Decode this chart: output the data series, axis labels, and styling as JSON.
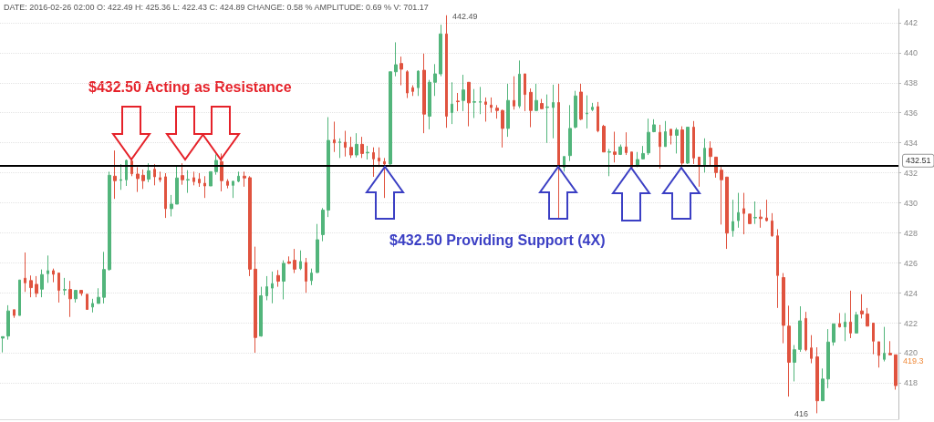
{
  "chart_data": {
    "type": "candlestick",
    "categories": [
      null,
      null,
      null,
      null,
      null,
      null,
      null,
      null,
      null,
      null,
      null,
      null,
      null,
      null,
      null,
      null,
      null,
      null,
      null,
      null,
      null,
      null,
      null,
      null,
      null,
      null,
      null,
      null,
      null,
      null,
      null,
      null,
      null,
      null,
      null,
      null,
      null,
      null,
      null,
      null,
      null,
      null,
      null,
      null,
      null,
      null,
      null,
      null,
      null,
      null,
      null,
      null,
      null,
      null,
      null,
      null,
      null,
      null,
      null,
      null,
      null,
      null,
      null,
      null,
      null,
      null,
      null,
      null,
      null,
      null,
      null,
      null,
      null,
      null,
      null,
      null,
      null,
      null,
      null,
      null,
      null,
      null,
      null,
      null,
      null,
      null,
      null,
      null,
      null,
      null,
      null,
      null,
      null,
      null,
      null,
      null,
      null,
      null,
      null,
      null,
      null,
      null,
      null,
      null,
      null,
      null,
      null,
      null,
      null,
      null,
      null,
      null,
      null,
      null,
      null,
      null,
      null,
      null,
      null,
      null,
      null,
      null,
      null,
      null,
      null,
      null,
      null,
      null,
      null,
      null,
      null,
      null,
      null,
      null,
      null,
      null,
      null,
      null,
      null,
      null,
      null,
      null,
      null,
      null,
      null,
      null,
      null,
      null,
      null,
      null,
      null,
      null,
      null,
      null,
      null,
      null,
      null,
      null,
      null,
      null
    ],
    "ohlc": [
      [
        421.0,
        421.1,
        420.05,
        421.1
      ],
      [
        421.14,
        423.19,
        420.9,
        422.81
      ],
      [
        422.89,
        422.89,
        422.35,
        422.51
      ],
      [
        422.51,
        424.87,
        422.51,
        424.87
      ],
      [
        424.99,
        426.7,
        424.08,
        424.68
      ],
      [
        424.83,
        425.17,
        423.72,
        424.36
      ],
      [
        424.58,
        425.13,
        423.72,
        423.98
      ],
      [
        424.26,
        425.57,
        423.72,
        425.23
      ],
      [
        425.29,
        426.5,
        424.68,
        425.49
      ],
      [
        425.49,
        425.63,
        424.72,
        425.25
      ],
      [
        425.33,
        425.33,
        423.37,
        424.18
      ],
      [
        424.2,
        425.01,
        423.86,
        424.24
      ],
      [
        424.24,
        424.81,
        422.41,
        423.62
      ],
      [
        423.62,
        424.18,
        423.37,
        424.18
      ],
      [
        424.18,
        424.18,
        423.82,
        423.98
      ],
      [
        423.92,
        423.92,
        422.91,
        422.91
      ],
      [
        423.07,
        423.62,
        422.71,
        423.31
      ],
      [
        423.31,
        424.32,
        423.31,
        423.72
      ],
      [
        423.72,
        426.74,
        423.31,
        425.57
      ],
      [
        425.57,
        432.08,
        425.49,
        431.84
      ],
      [
        431.78,
        433.49,
        430.27,
        431.48
      ],
      [
        431.5,
        432.58,
        430.87,
        431.55
      ],
      [
        431.54,
        432.89,
        431.13,
        432.83
      ],
      [
        432.79,
        432.89,
        431.78,
        431.94
      ],
      [
        431.92,
        432.38,
        430.73,
        431.62
      ],
      [
        431.84,
        432.22,
        430.93,
        431.48
      ],
      [
        431.58,
        432.64,
        431.38,
        432.14
      ],
      [
        432.24,
        432.58,
        431.17,
        431.74
      ],
      [
        431.68,
        432.08,
        431.38,
        431.54
      ],
      [
        431.74,
        431.98,
        429.0,
        429.62
      ],
      [
        429.62,
        430.53,
        429.1,
        429.92
      ],
      [
        429.92,
        432.48,
        429.92,
        431.66
      ],
      [
        431.82,
        432.64,
        431.21,
        431.54
      ],
      [
        431.52,
        432.18,
        430.67,
        431.56
      ],
      [
        431.68,
        432.08,
        431.17,
        431.42
      ],
      [
        431.58,
        431.98,
        431.07,
        431.33
      ],
      [
        431.31,
        431.78,
        430.33,
        431.13
      ],
      [
        431.13,
        432.08,
        431.13,
        432.08
      ],
      [
        432.08,
        433.23,
        431.88,
        432.83
      ],
      [
        432.75,
        433.29,
        430.77,
        431.48
      ],
      [
        431.44,
        431.58,
        430.97,
        431.17
      ],
      [
        431.17,
        431.48,
        430.33,
        431.44
      ],
      [
        431.44,
        432.08,
        431.38,
        431.78
      ],
      [
        431.78,
        432.08,
        431.08,
        431.66
      ],
      [
        431.68,
        431.78,
        425.13,
        425.59
      ],
      [
        425.59,
        427.09,
        420.03,
        421.04
      ],
      [
        421.14,
        424.42,
        421.1,
        423.82
      ],
      [
        423.82,
        425.13,
        423.52,
        424.42
      ],
      [
        424.33,
        425.43,
        423.32,
        424.63
      ],
      [
        425.17,
        425.53,
        424.42,
        424.79
      ],
      [
        424.79,
        426.18,
        423.58,
        425.98
      ],
      [
        426.08,
        426.44,
        425.94,
        425.98
      ],
      [
        426.18,
        426.94,
        425.33,
        425.59
      ],
      [
        425.63,
        426.84,
        425.53,
        426.1
      ],
      [
        426.04,
        426.34,
        424.02,
        424.79
      ],
      [
        424.83,
        425.63,
        424.53,
        425.33
      ],
      [
        425.37,
        428.6,
        425.33,
        427.55
      ],
      [
        427.89,
        429.66,
        427.45,
        429.52
      ],
      [
        429.52,
        435.71,
        429.06,
        434.16
      ],
      [
        434.2,
        435.41,
        433.39,
        434.0
      ],
      [
        434.02,
        434.3,
        432.99,
        434.06
      ],
      [
        434.04,
        434.8,
        433.09,
        433.7
      ],
      [
        433.7,
        434.4,
        432.99,
        433.19
      ],
      [
        433.19,
        434.64,
        433.03,
        433.9
      ],
      [
        433.9,
        434.4,
        432.99,
        433.29
      ],
      [
        433.33,
        433.8,
        432.89,
        433.37
      ],
      [
        433.35,
        433.7,
        431.74,
        432.93
      ],
      [
        432.99,
        433.7,
        432.39,
        432.79
      ],
      [
        432.75,
        432.99,
        430.33,
        432.59
      ],
      [
        432.59,
        438.73,
        432.49,
        438.73
      ],
      [
        438.73,
        440.69,
        438.43,
        439.2
      ],
      [
        439.28,
        439.74,
        437.83,
        438.9
      ],
      [
        438.73,
        438.83,
        436.98,
        437.32
      ],
      [
        437.67,
        437.83,
        437.12,
        437.42
      ],
      [
        437.67,
        438.83,
        437.12,
        438.77
      ],
      [
        438.83,
        439.94,
        434.64,
        435.91
      ],
      [
        435.77,
        438.19,
        434.9,
        438.03
      ],
      [
        438.03,
        439.24,
        437.12,
        438.59
      ],
      [
        438.59,
        441.86,
        438.43,
        441.25
      ],
      [
        441.25,
        442.49,
        435.0,
        435.77
      ],
      [
        436.01,
        438.03,
        435.25,
        436.58
      ],
      [
        436.78,
        437.32,
        436.11,
        436.74
      ],
      [
        436.82,
        438.53,
        436.11,
        437.52
      ],
      [
        438.03,
        438.03,
        435.1,
        436.66
      ],
      [
        436.7,
        437.58,
        435.65,
        436.74
      ],
      [
        436.7,
        437.72,
        435.91,
        436.74
      ],
      [
        436.72,
        437.02,
        435.41,
        436.56
      ],
      [
        436.51,
        437.02,
        436.01,
        436.35
      ],
      [
        436.31,
        436.51,
        435.61,
        436.15
      ],
      [
        436.15,
        436.21,
        433.69,
        434.96
      ],
      [
        434.96,
        437.93,
        434.4,
        436.82
      ],
      [
        436.82,
        438.43,
        436.21,
        436.45
      ],
      [
        436.45,
        439.48,
        436.31,
        438.57
      ],
      [
        438.59,
        438.59,
        436.11,
        437.22
      ],
      [
        437.36,
        437.62,
        435.04,
        436.15
      ],
      [
        436.15,
        437.93,
        436.11,
        436.82
      ],
      [
        436.62,
        436.92,
        436.25,
        436.27
      ],
      [
        436.35,
        437.22,
        434.0,
        436.39
      ],
      [
        436.35,
        437.87,
        434.3,
        436.68
      ],
      [
        436.68,
        437.93,
        428.96,
        432.38
      ],
      [
        432.38,
        433.09,
        432.08,
        433.09
      ],
      [
        433.15,
        436.51,
        432.79,
        434.96
      ],
      [
        435.04,
        437.46,
        434.96,
        437.12
      ],
      [
        437.38,
        437.93,
        435.51,
        435.57
      ],
      [
        435.93,
        437.16,
        434.96,
        435.97
      ],
      [
        436.21,
        436.66,
        436.11,
        436.37
      ],
      [
        436.41,
        436.72,
        434.7,
        434.8
      ],
      [
        435.1,
        435.2,
        433.39,
        433.39
      ],
      [
        433.37,
        433.59,
        431.78,
        433.41
      ],
      [
        433.39,
        434.74,
        432.69,
        433.23
      ],
      [
        433.23,
        433.89,
        433.19,
        433.73
      ],
      [
        433.73,
        434.7,
        433.19,
        433.35
      ],
      [
        433.39,
        433.39,
        432.28,
        432.38
      ],
      [
        432.48,
        433.39,
        432.38,
        432.89
      ],
      [
        432.93,
        433.79,
        432.89,
        433.29
      ],
      [
        433.33,
        435.61,
        433.19,
        434.7
      ],
      [
        434.74,
        435.57,
        434.7,
        435.2
      ],
      [
        434.7,
        435.2,
        432.28,
        433.75
      ],
      [
        433.75,
        435.45,
        433.75,
        434.74
      ],
      [
        434.9,
        434.9,
        433.89,
        434.5
      ],
      [
        434.5,
        435.0,
        433.29,
        434.86
      ],
      [
        434.86,
        435.1,
        432.48,
        432.65
      ],
      [
        432.65,
        435.04,
        432.59,
        435.04
      ],
      [
        435.04,
        435.45,
        432.59,
        432.99
      ],
      [
        433.05,
        433.05,
        431.08,
        432.49
      ],
      [
        432.53,
        434.3,
        432.02,
        433.64
      ],
      [
        433.64,
        434.1,
        432.49,
        433.09
      ],
      [
        433.05,
        433.05,
        431.68,
        432.02
      ],
      [
        432.18,
        432.39,
        428.56,
        431.54
      ],
      [
        431.72,
        431.72,
        426.94,
        427.99
      ],
      [
        428.15,
        430.21,
        427.75,
        428.76
      ],
      [
        428.82,
        430.67,
        428.35,
        429.36
      ],
      [
        429.62,
        430.67,
        427.91,
        429.3
      ],
      [
        429.26,
        429.26,
        428.62,
        428.62
      ],
      [
        429.0,
        430.1,
        428.6,
        429.04
      ],
      [
        429.06,
        429.56,
        428.35,
        428.96
      ],
      [
        429.0,
        430.21,
        428.76,
        428.82
      ],
      [
        428.8,
        429.32,
        427.75,
        427.81
      ],
      [
        427.81,
        428.25,
        423.01,
        425.17
      ],
      [
        425.03,
        425.33,
        420.66,
        421.85
      ],
      [
        421.8,
        423.16,
        417.11,
        419.39
      ],
      [
        419.39,
        420.54,
        418.12,
        420.23
      ],
      [
        420.25,
        423.12,
        420.09,
        422.15
      ],
      [
        422.31,
        422.75,
        420.13,
        420.23
      ],
      [
        420.35,
        421.2,
        419.33,
        419.65
      ],
      [
        419.75,
        420.39,
        416,
        416.83
      ],
      [
        416.83,
        418.98,
        416.83,
        418.28
      ],
      [
        418.28,
        421.6,
        417.67,
        420.74
      ],
      [
        420.74,
        421.95,
        420.5,
        421.95
      ],
      [
        421.97,
        422.67,
        421.71,
        421.75
      ],
      [
        421.75,
        422.67,
        420.8,
        422.07
      ],
      [
        422.07,
        424.16,
        421.0,
        421.34
      ],
      [
        421.34,
        422.75,
        421.34,
        422.55
      ],
      [
        422.81,
        423.92,
        422.31,
        422.61
      ],
      [
        422.61,
        423.01,
        421.8,
        421.8
      ],
      [
        422.0,
        422.0,
        419.93,
        420.8
      ],
      [
        420.76,
        420.76,
        419.04,
        419.85
      ],
      [
        419.59,
        421.75,
        419.45,
        419.99
      ],
      [
        419.99,
        420.8,
        419.85,
        419.89
      ],
      [
        419.89,
        419.89,
        417.57,
        417.84
      ]
    ],
    "colors": [
      "#52b57b",
      "#52b57b",
      "#e0533f",
      "#52b57b",
      "#e0533f",
      "#e0533f",
      "#e0533f",
      "#52b57b",
      "#52b57b",
      "#e0533f",
      "#e0533f",
      "#52b57b",
      "#e0533f",
      "#52b57b",
      "#e0533f",
      "#e0533f",
      "#52b57b",
      "#52b57b",
      "#52b57b",
      "#52b57b",
      "#e0533f",
      "#52b57b",
      "#52b57b",
      "#e0533f",
      "#e0533f",
      "#e0533f",
      "#52b57b",
      "#e0533f",
      "#e0533f",
      "#e0533f",
      "#52b57b",
      "#52b57b",
      "#e0533f",
      "#52b57b",
      "#e0533f",
      "#e0533f",
      "#e0533f",
      "#52b57b",
      "#52b57b",
      "#e0533f",
      "#e0533f",
      "#52b57b",
      "#52b57b",
      "#e0533f",
      "#e0533f",
      "#e0533f",
      "#52b57b",
      "#52b57b",
      "#52b57b",
      "#e0533f",
      "#52b57b",
      "#e0533f",
      "#e0533f",
      "#52b57b",
      "#e0533f",
      "#52b57b",
      "#52b57b",
      "#52b57b",
      "#52b57b",
      "#e0533f",
      "#52b57b",
      "#e0533f",
      "#e0533f",
      "#52b57b",
      "#e0533f",
      "#52b57b",
      "#e0533f",
      "#e0533f",
      "#e0533f",
      "#52b57b",
      "#52b57b",
      "#e0533f",
      "#e0533f",
      "#e0533f",
      "#52b57b",
      "#e0533f",
      "#52b57b",
      "#52b57b",
      "#52b57b",
      "#e0533f",
      "#52b57b",
      "#e0533f",
      "#52b57b",
      "#e0533f",
      "#52b57b",
      "#52b57b",
      "#e0533f",
      "#e0533f",
      "#e0533f",
      "#e0533f",
      "#52b57b",
      "#e0533f",
      "#52b57b",
      "#e0533f",
      "#e0533f",
      "#52b57b",
      "#e0533f",
      "#52b57b",
      "#52b57b",
      "#e0533f",
      "#52b57b",
      "#52b57b",
      "#52b57b",
      "#e0533f",
      "#52b57b",
      "#52b57b",
      "#e0533f",
      "#e0533f",
      "#52b57b",
      "#e0533f",
      "#52b57b",
      "#e0533f",
      "#e0533f",
      "#52b57b",
      "#52b57b",
      "#52b57b",
      "#52b57b",
      "#e0533f",
      "#52b57b",
      "#e0533f",
      "#52b57b",
      "#e0533f",
      "#52b57b",
      "#e0533f",
      "#e0533f",
      "#52b57b",
      "#e0533f",
      "#e0533f",
      "#e0533f",
      "#e0533f",
      "#52b57b",
      "#52b57b",
      "#e0533f",
      "#e0533f",
      "#52b57b",
      "#e0533f",
      "#e0533f",
      "#e0533f",
      "#e0533f",
      "#e0533f",
      "#e0533f",
      "#52b57b",
      "#52b57b",
      "#e0533f",
      "#e0533f",
      "#e0533f",
      "#52b57b",
      "#52b57b",
      "#52b57b",
      "#e0533f",
      "#52b57b",
      "#e0533f",
      "#52b57b",
      "#e0533f",
      "#e0533f",
      "#e0533f",
      "#e0533f",
      "#52b57b",
      "#e0533f",
      "#e0533f"
    ],
    "ylim": [
      415.6,
      442.9
    ],
    "yticks": [
      418,
      420,
      422,
      424,
      426,
      428,
      430,
      432,
      434,
      436,
      438,
      440,
      442
    ],
    "grid": "y",
    "tick_labels": "y",
    "ref_lines": [
      {
        "axis": "y",
        "value": 432.51,
        "label": "432.51",
        "color": "#000000"
      }
    ],
    "annotations": [
      "DATE: 2016-02-26 02:00 O: 422.49 H: 425.36 L: 422.43 C: 424.89 CHANGE: 0.58 % AMPLITUDE: 0.69 % V: 701.17",
      "$432.50 Acting as Resistance",
      "$432.50 Providing Support (4X)",
      "442.49",
      "416",
      "419.3"
    ]
  }
}
